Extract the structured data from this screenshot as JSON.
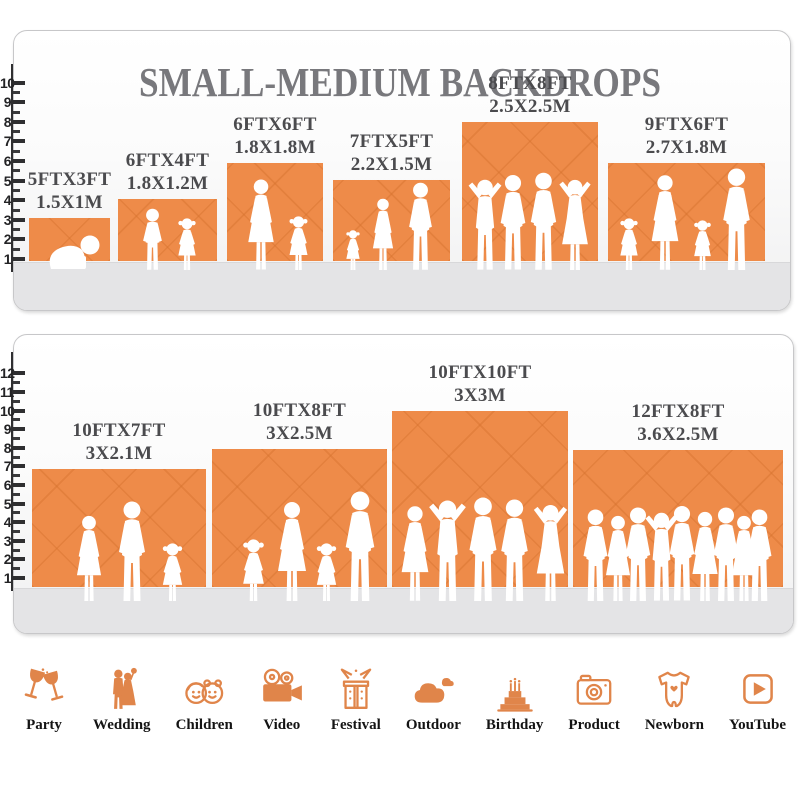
{
  "title": "SMALL-MEDIUM BACKDROPS",
  "colors": {
    "backdrop_orange": "#EE8B49",
    "title_gray": "#78787C",
    "size_label_gray": "#4B4B4E",
    "icon_orange": "#E0854A",
    "ruler_dark": "#2F2F31",
    "floor_gray": "#E4E4E6"
  },
  "panels": [
    {
      "name": "small-medium",
      "ruler": {
        "min": 1,
        "max": 10
      },
      "boxes": [
        {
          "size_ft": "5FTX3FT",
          "size_m": "1.5X1M",
          "figures": [
            "baby"
          ]
        },
        {
          "size_ft": "6FTX4FT",
          "size_m": "1.8X1.2M",
          "figures": [
            "boy",
            "girl"
          ]
        },
        {
          "size_ft": "6FTX6FT",
          "size_m": "1.8X1.8M",
          "figures": [
            "woman",
            "girl"
          ]
        },
        {
          "size_ft": "7FTX5FT",
          "size_m": "2.2X1.5M",
          "figures": [
            "girl",
            "woman",
            "man"
          ]
        },
        {
          "size_ft": "8FTX8FT",
          "size_m": "2.5X2.5M",
          "figures": [
            "man-up",
            "man",
            "man",
            "woman-up"
          ]
        },
        {
          "size_ft": "9FTX6FT",
          "size_m": "2.7X1.8M",
          "figures": [
            "girl",
            "woman",
            "girl",
            "man"
          ]
        }
      ]
    },
    {
      "name": "large",
      "ruler": {
        "min": 1,
        "max": 12
      },
      "boxes": [
        {
          "size_ft": "10FTX7FT",
          "size_m": "3X2.1M",
          "figures": [
            "woman",
            "man",
            "girl"
          ]
        },
        {
          "size_ft": "10FTX8FT",
          "size_m": "3X2.5M",
          "figures": [
            "girl",
            "woman",
            "girl",
            "man"
          ]
        },
        {
          "size_ft": "10FTX10FT",
          "size_m": "3X3M",
          "figures": [
            "woman",
            "man-up",
            "man",
            "man",
            "woman-up"
          ]
        },
        {
          "size_ft": "12FTX8FT",
          "size_m": "3.6X2.5M",
          "figures": [
            "man",
            "woman",
            "man",
            "man-up",
            "man",
            "woman",
            "man",
            "woman",
            "man"
          ]
        }
      ]
    }
  ],
  "categories": [
    {
      "label": "Party",
      "icon": "party-icon"
    },
    {
      "label": "Wedding",
      "icon": "wedding-icon"
    },
    {
      "label": "Children",
      "icon": "children-icon"
    },
    {
      "label": "Video",
      "icon": "video-icon"
    },
    {
      "label": "Festival",
      "icon": "festival-icon"
    },
    {
      "label": "Outdoor",
      "icon": "outdoor-icon"
    },
    {
      "label": "Birthday",
      "icon": "birthday-icon"
    },
    {
      "label": "Product",
      "icon": "product-icon"
    },
    {
      "label": "Newborn",
      "icon": "newborn-icon"
    },
    {
      "label": "YouTube",
      "icon": "youtube-icon"
    }
  ],
  "chart_data": [
    {
      "type": "bar",
      "title": "SMALL-MEDIUM BACKDROPS",
      "categories": [
        "5FTX3FT",
        "6FTX4FT",
        "6FTX6FT",
        "7FTX5FT",
        "8FTX8FT",
        "9FTX6FT"
      ],
      "series": [
        {
          "name": "width_ft",
          "values": [
            5,
            6,
            6,
            7,
            8,
            9
          ]
        },
        {
          "name": "height_ft",
          "values": [
            3,
            4,
            6,
            5,
            8,
            6
          ]
        }
      ],
      "labels_meters": [
        "1.5X1M",
        "1.8X1.2M",
        "1.8X1.8M",
        "2.2X1.5M",
        "2.5X2.5M",
        "2.7X1.8M"
      ],
      "ylabel": "feet",
      "ylim": [
        0,
        10
      ],
      "grid": false,
      "note": "rectangles drawn to scale against a 1-10 ft ruler with human silhouettes for scale"
    },
    {
      "type": "bar",
      "title": "",
      "categories": [
        "10FTX7FT",
        "10FTX8FT",
        "10FTX10FT",
        "12FTX8FT"
      ],
      "series": [
        {
          "name": "width_ft",
          "values": [
            10,
            10,
            10,
            12
          ]
        },
        {
          "name": "height_ft",
          "values": [
            7,
            8,
            10,
            8
          ]
        }
      ],
      "labels_meters": [
        "3X2.1M",
        "3X2.5M",
        "3X3M",
        "3.6X2.5M"
      ],
      "ylabel": "feet",
      "ylim": [
        0,
        12
      ],
      "grid": false,
      "note": "rectangles drawn to scale against a 1-12 ft ruler with human silhouettes for scale"
    }
  ]
}
